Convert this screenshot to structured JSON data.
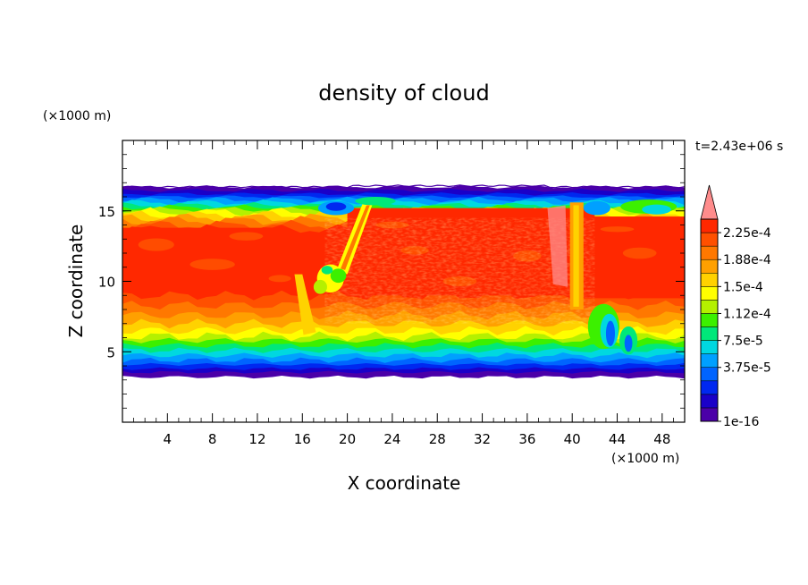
{
  "chart_data": {
    "type": "heatmap",
    "title": "density of cloud",
    "xlabel": "X coordinate",
    "ylabel": "Z coordinate",
    "x_unit": "(×1000 m)",
    "y_unit": "(×1000 m)",
    "time_label": "t=2.43e+06 s",
    "xlim": [
      0,
      50
    ],
    "ylim": [
      0,
      20
    ],
    "x_ticks": [
      4,
      8,
      12,
      16,
      20,
      24,
      28,
      32,
      36,
      40,
      44,
      48
    ],
    "y_ticks": [
      5,
      10,
      15
    ],
    "cloud_layer": {
      "z_bottom": 3.2,
      "z_top": 16.7
    },
    "colorbar": {
      "labels": [
        "2.25e-4",
        "1.88e-4",
        "1.5e-4",
        "1.12e-4",
        "7.5e-5",
        "3.75e-5",
        "1e-16"
      ],
      "colors": [
        "#4b00a8",
        "#1a00c8",
        "#0028f0",
        "#0064ff",
        "#00a0ff",
        "#00d8e0",
        "#00e87a",
        "#3cf000",
        "#b4f000",
        "#ffff00",
        "#ffd200",
        "#ffa000",
        "#ff7800",
        "#ff5000",
        "#ff2800",
        "#ff8c8c"
      ],
      "extend": "max"
    }
  }
}
